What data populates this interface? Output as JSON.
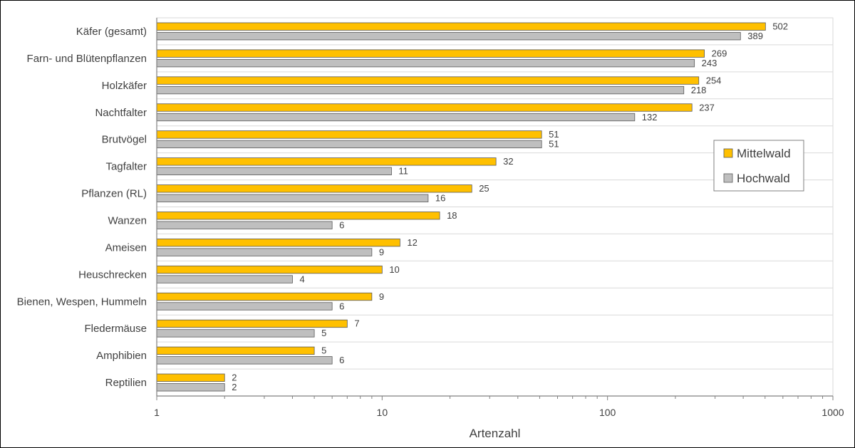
{
  "chart_data": {
    "type": "bar",
    "orientation": "horizontal",
    "xscale": "log",
    "xlim": [
      1,
      1000
    ],
    "xlabel": "Artenzahl",
    "ylabel": "",
    "title": "",
    "grid": "horizontal",
    "legend_position": "right",
    "xticks": [
      "1",
      "10",
      "100",
      "1000"
    ],
    "categories": [
      "Käfer (gesamt)",
      "Farn- und Blütenpflanzen",
      "Holzkäfer",
      "Nachtfalter",
      "Brutvögel",
      "Tagfalter",
      "Pflanzen (RL)",
      "Wanzen",
      "Ameisen",
      "Heuschrecken",
      "Bienen, Wespen, Hummeln",
      "Fledermäuse",
      "Amphibien",
      "Reptilien"
    ],
    "series": [
      {
        "name": "Mittelwald",
        "color": "#ffc000",
        "values": [
          502,
          269,
          254,
          237,
          51,
          32,
          25,
          18,
          12,
          10,
          9,
          7,
          5,
          2
        ]
      },
      {
        "name": "Hochwald",
        "color": "#bfbfbf",
        "values": [
          389,
          243,
          218,
          132,
          51,
          11,
          16,
          6,
          9,
          4,
          6,
          5,
          6,
          2
        ]
      }
    ]
  }
}
